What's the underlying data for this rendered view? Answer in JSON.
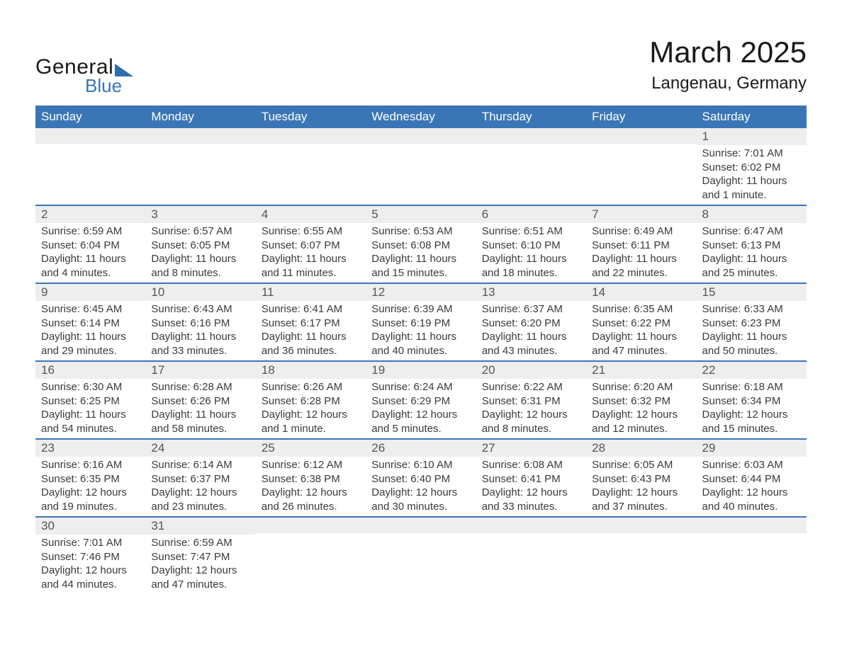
{
  "header": {
    "logo_general": "General",
    "logo_blue": "Blue",
    "month_title": "March 2025",
    "location": "Langenau, Germany"
  },
  "calendar": {
    "colors": {
      "header_bg": "#3a76b5",
      "header_fg": "#ffffff",
      "row_sep": "#3a76b5",
      "daynum_bg": "#eeeeee",
      "page_bg": "#ffffff",
      "text": "#3a3a3a"
    },
    "font_family": "Arial",
    "title_fontsize": 42,
    "location_fontsize": 24,
    "header_fontsize": 17,
    "body_fontsize": 15,
    "day_headers": [
      "Sunday",
      "Monday",
      "Tuesday",
      "Wednesday",
      "Thursday",
      "Friday",
      "Saturday"
    ],
    "weeks": [
      [
        {
          "blank": true
        },
        {
          "blank": true
        },
        {
          "blank": true
        },
        {
          "blank": true
        },
        {
          "blank": true
        },
        {
          "blank": true
        },
        {
          "day": "1",
          "sunrise": "Sunrise: 7:01 AM",
          "sunset": "Sunset: 6:02 PM",
          "dl1": "Daylight: 11 hours",
          "dl2": "and 1 minute."
        }
      ],
      [
        {
          "day": "2",
          "sunrise": "Sunrise: 6:59 AM",
          "sunset": "Sunset: 6:04 PM",
          "dl1": "Daylight: 11 hours",
          "dl2": "and 4 minutes."
        },
        {
          "day": "3",
          "sunrise": "Sunrise: 6:57 AM",
          "sunset": "Sunset: 6:05 PM",
          "dl1": "Daylight: 11 hours",
          "dl2": "and 8 minutes."
        },
        {
          "day": "4",
          "sunrise": "Sunrise: 6:55 AM",
          "sunset": "Sunset: 6:07 PM",
          "dl1": "Daylight: 11 hours",
          "dl2": "and 11 minutes."
        },
        {
          "day": "5",
          "sunrise": "Sunrise: 6:53 AM",
          "sunset": "Sunset: 6:08 PM",
          "dl1": "Daylight: 11 hours",
          "dl2": "and 15 minutes."
        },
        {
          "day": "6",
          "sunrise": "Sunrise: 6:51 AM",
          "sunset": "Sunset: 6:10 PM",
          "dl1": "Daylight: 11 hours",
          "dl2": "and 18 minutes."
        },
        {
          "day": "7",
          "sunrise": "Sunrise: 6:49 AM",
          "sunset": "Sunset: 6:11 PM",
          "dl1": "Daylight: 11 hours",
          "dl2": "and 22 minutes."
        },
        {
          "day": "8",
          "sunrise": "Sunrise: 6:47 AM",
          "sunset": "Sunset: 6:13 PM",
          "dl1": "Daylight: 11 hours",
          "dl2": "and 25 minutes."
        }
      ],
      [
        {
          "day": "9",
          "sunrise": "Sunrise: 6:45 AM",
          "sunset": "Sunset: 6:14 PM",
          "dl1": "Daylight: 11 hours",
          "dl2": "and 29 minutes."
        },
        {
          "day": "10",
          "sunrise": "Sunrise: 6:43 AM",
          "sunset": "Sunset: 6:16 PM",
          "dl1": "Daylight: 11 hours",
          "dl2": "and 33 minutes."
        },
        {
          "day": "11",
          "sunrise": "Sunrise: 6:41 AM",
          "sunset": "Sunset: 6:17 PM",
          "dl1": "Daylight: 11 hours",
          "dl2": "and 36 minutes."
        },
        {
          "day": "12",
          "sunrise": "Sunrise: 6:39 AM",
          "sunset": "Sunset: 6:19 PM",
          "dl1": "Daylight: 11 hours",
          "dl2": "and 40 minutes."
        },
        {
          "day": "13",
          "sunrise": "Sunrise: 6:37 AM",
          "sunset": "Sunset: 6:20 PM",
          "dl1": "Daylight: 11 hours",
          "dl2": "and 43 minutes."
        },
        {
          "day": "14",
          "sunrise": "Sunrise: 6:35 AM",
          "sunset": "Sunset: 6:22 PM",
          "dl1": "Daylight: 11 hours",
          "dl2": "and 47 minutes."
        },
        {
          "day": "15",
          "sunrise": "Sunrise: 6:33 AM",
          "sunset": "Sunset: 6:23 PM",
          "dl1": "Daylight: 11 hours",
          "dl2": "and 50 minutes."
        }
      ],
      [
        {
          "day": "16",
          "sunrise": "Sunrise: 6:30 AM",
          "sunset": "Sunset: 6:25 PM",
          "dl1": "Daylight: 11 hours",
          "dl2": "and 54 minutes."
        },
        {
          "day": "17",
          "sunrise": "Sunrise: 6:28 AM",
          "sunset": "Sunset: 6:26 PM",
          "dl1": "Daylight: 11 hours",
          "dl2": "and 58 minutes."
        },
        {
          "day": "18",
          "sunrise": "Sunrise: 6:26 AM",
          "sunset": "Sunset: 6:28 PM",
          "dl1": "Daylight: 12 hours",
          "dl2": "and 1 minute."
        },
        {
          "day": "19",
          "sunrise": "Sunrise: 6:24 AM",
          "sunset": "Sunset: 6:29 PM",
          "dl1": "Daylight: 12 hours",
          "dl2": "and 5 minutes."
        },
        {
          "day": "20",
          "sunrise": "Sunrise: 6:22 AM",
          "sunset": "Sunset: 6:31 PM",
          "dl1": "Daylight: 12 hours",
          "dl2": "and 8 minutes."
        },
        {
          "day": "21",
          "sunrise": "Sunrise: 6:20 AM",
          "sunset": "Sunset: 6:32 PM",
          "dl1": "Daylight: 12 hours",
          "dl2": "and 12 minutes."
        },
        {
          "day": "22",
          "sunrise": "Sunrise: 6:18 AM",
          "sunset": "Sunset: 6:34 PM",
          "dl1": "Daylight: 12 hours",
          "dl2": "and 15 minutes."
        }
      ],
      [
        {
          "day": "23",
          "sunrise": "Sunrise: 6:16 AM",
          "sunset": "Sunset: 6:35 PM",
          "dl1": "Daylight: 12 hours",
          "dl2": "and 19 minutes."
        },
        {
          "day": "24",
          "sunrise": "Sunrise: 6:14 AM",
          "sunset": "Sunset: 6:37 PM",
          "dl1": "Daylight: 12 hours",
          "dl2": "and 23 minutes."
        },
        {
          "day": "25",
          "sunrise": "Sunrise: 6:12 AM",
          "sunset": "Sunset: 6:38 PM",
          "dl1": "Daylight: 12 hours",
          "dl2": "and 26 minutes."
        },
        {
          "day": "26",
          "sunrise": "Sunrise: 6:10 AM",
          "sunset": "Sunset: 6:40 PM",
          "dl1": "Daylight: 12 hours",
          "dl2": "and 30 minutes."
        },
        {
          "day": "27",
          "sunrise": "Sunrise: 6:08 AM",
          "sunset": "Sunset: 6:41 PM",
          "dl1": "Daylight: 12 hours",
          "dl2": "and 33 minutes."
        },
        {
          "day": "28",
          "sunrise": "Sunrise: 6:05 AM",
          "sunset": "Sunset: 6:43 PM",
          "dl1": "Daylight: 12 hours",
          "dl2": "and 37 minutes."
        },
        {
          "day": "29",
          "sunrise": "Sunrise: 6:03 AM",
          "sunset": "Sunset: 6:44 PM",
          "dl1": "Daylight: 12 hours",
          "dl2": "and 40 minutes."
        }
      ],
      [
        {
          "day": "30",
          "sunrise": "Sunrise: 7:01 AM",
          "sunset": "Sunset: 7:46 PM",
          "dl1": "Daylight: 12 hours",
          "dl2": "and 44 minutes."
        },
        {
          "day": "31",
          "sunrise": "Sunrise: 6:59 AM",
          "sunset": "Sunset: 7:47 PM",
          "dl1": "Daylight: 12 hours",
          "dl2": "and 47 minutes."
        },
        {
          "blank": true
        },
        {
          "blank": true
        },
        {
          "blank": true
        },
        {
          "blank": true
        },
        {
          "blank": true
        }
      ]
    ]
  }
}
